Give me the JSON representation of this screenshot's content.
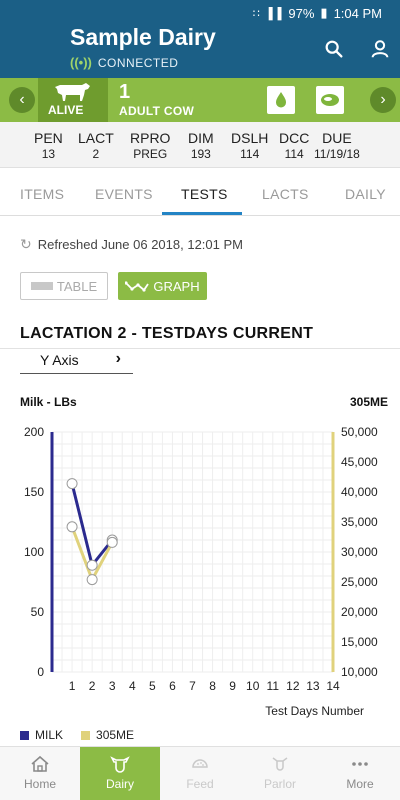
{
  "status_bar": {
    "battery": "97%",
    "time": "1:04 PM"
  },
  "header": {
    "title": "Sample Dairy",
    "connection": "CONNECTED"
  },
  "cow": {
    "status": "ALIVE",
    "number": "1",
    "type": "ADULT COW"
  },
  "stats": [
    {
      "label": "PEN",
      "value": "13"
    },
    {
      "label": "LACT",
      "value": "2"
    },
    {
      "label": "RPRO",
      "value": "PREG"
    },
    {
      "label": "DIM",
      "value": "193"
    },
    {
      "label": "DSLH",
      "value": "114"
    },
    {
      "label": "DCC",
      "value": "114"
    },
    {
      "label": "DUE",
      "value": "11/19/18"
    }
  ],
  "tabs": [
    {
      "label": "ITEMS",
      "active": false
    },
    {
      "label": "EVENTS",
      "active": false
    },
    {
      "label": "TESTS",
      "active": true
    },
    {
      "label": "LACTS",
      "active": false
    },
    {
      "label": "DAILY",
      "active": false
    }
  ],
  "refreshed": "Refreshed June 06 2018, 12:01 PM",
  "view_toggle": {
    "table_label": "TABLE",
    "graph_label": "GRAPH",
    "selected": "GRAPH"
  },
  "section_title": "LACTATION 2 - TESTDAYS CURRENT",
  "y_axis_selector": "Y Axis",
  "colors": {
    "header": "#1b5f86",
    "accent_green": "#8cbb45",
    "milk": "#2b2a8e",
    "me305": "#e0d27c"
  },
  "chart_data": {
    "type": "line",
    "xlabel": "Test Days Number",
    "ylabel_left": "Milk - LBs",
    "ylabel_right": "305ME",
    "x": [
      1,
      2,
      3
    ],
    "xlim": [
      0,
      14
    ],
    "x_ticks": [
      "1",
      "2",
      "3",
      "4",
      "5",
      "6",
      "7",
      "8",
      "9",
      "10",
      "11",
      "12",
      "13",
      "14"
    ],
    "ylim_left": [
      0,
      200
    ],
    "y_ticks_left": [
      "0",
      "50",
      "100",
      "150",
      "200"
    ],
    "ylim_right": [
      10000,
      50000
    ],
    "y_ticks_right": [
      "10,000",
      "15,000",
      "20,000",
      "25,000",
      "30,000",
      "35,000",
      "40,000",
      "45,000",
      "50,000"
    ],
    "grid": true,
    "series": [
      {
        "name": "MILK",
        "axis": "left",
        "values": [
          157,
          89,
          110
        ]
      },
      {
        "name": "305ME",
        "axis": "right",
        "values": [
          34200,
          25400,
          31600
        ]
      }
    ],
    "legend": "bottom-left"
  },
  "bottom_nav": [
    {
      "label": "Home",
      "icon": "home-icon",
      "active": false
    },
    {
      "label": "Dairy",
      "icon": "cow-icon",
      "active": true
    },
    {
      "label": "Feed",
      "icon": "feed-icon",
      "active": false
    },
    {
      "label": "Parlor",
      "icon": "parlor-icon",
      "active": false
    },
    {
      "label": "More",
      "icon": "more-icon",
      "active": false
    }
  ]
}
